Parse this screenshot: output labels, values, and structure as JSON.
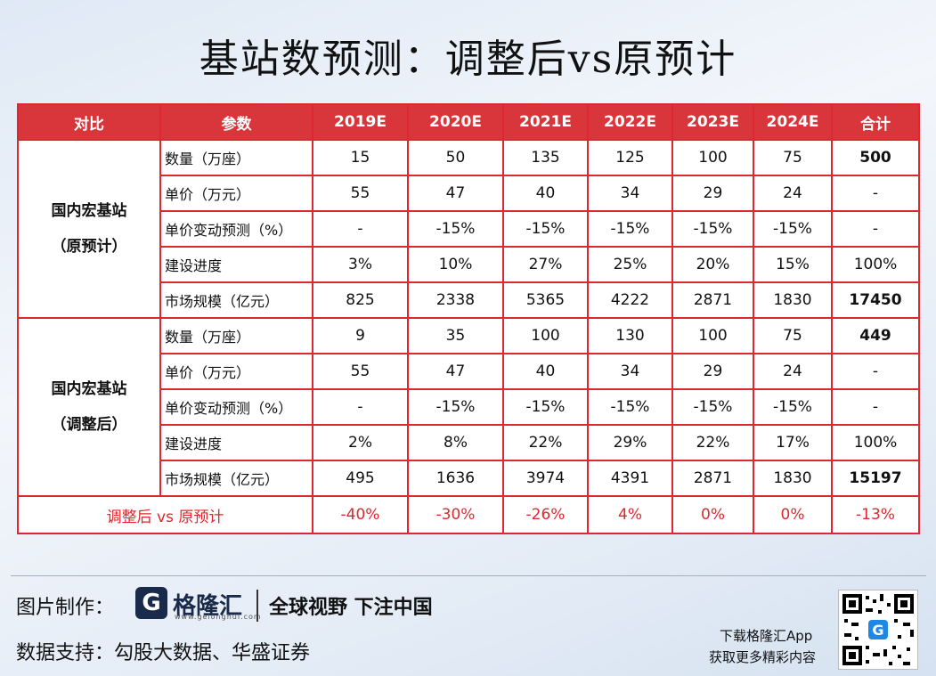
{
  "title": "基站数预测：调整后vs原预计",
  "watermark": {
    "main": "格隆汇",
    "url": "www.gelonghui.com"
  },
  "table": {
    "headers": [
      "对比",
      "参数",
      "2019E",
      "2020E",
      "2021E",
      "2022E",
      "2023E",
      "2024E",
      "合计"
    ],
    "groups": [
      {
        "label_line1": "国内宏基站",
        "label_line2": "（原预计）",
        "rows": [
          {
            "param": "数量（万座）",
            "values": [
              "15",
              "50",
              "135",
              "125",
              "100",
              "75"
            ],
            "total": "500",
            "total_bold": true
          },
          {
            "param": "单价（万元）",
            "values": [
              "55",
              "47",
              "40",
              "34",
              "29",
              "24"
            ],
            "total": "-",
            "total_bold": false
          },
          {
            "param": "单价变动预测（%）",
            "values": [
              "-",
              "-15%",
              "-15%",
              "-15%",
              "-15%",
              "-15%"
            ],
            "total": "-",
            "total_bold": false
          },
          {
            "param": "建设进度",
            "values": [
              "3%",
              "10%",
              "27%",
              "25%",
              "20%",
              "15%"
            ],
            "total": "100%",
            "total_bold": false
          },
          {
            "param": "市场规模（亿元）",
            "values": [
              "825",
              "2338",
              "5365",
              "4222",
              "2871",
              "1830"
            ],
            "total": "17450",
            "total_bold": true
          }
        ]
      },
      {
        "label_line1": "国内宏基站",
        "label_line2": "（调整后）",
        "rows": [
          {
            "param": "数量（万座）",
            "values": [
              "9",
              "35",
              "100",
              "130",
              "100",
              "75"
            ],
            "total": "449",
            "total_bold": true
          },
          {
            "param": "单价（万元）",
            "values": [
              "55",
              "47",
              "40",
              "34",
              "29",
              "24"
            ],
            "total": "-",
            "total_bold": false
          },
          {
            "param": "单价变动预测（%）",
            "values": [
              "-",
              "-15%",
              "-15%",
              "-15%",
              "-15%",
              "-15%"
            ],
            "total": "-",
            "total_bold": false
          },
          {
            "param": "建设进度",
            "values": [
              "2%",
              "8%",
              "22%",
              "29%",
              "22%",
              "17%"
            ],
            "total": "100%",
            "total_bold": false
          },
          {
            "param": "市场规模（亿元）",
            "values": [
              "495",
              "1636",
              "3974",
              "4391",
              "2871",
              "1830"
            ],
            "total": "15197",
            "total_bold": true
          }
        ]
      }
    ],
    "comparison": {
      "label": "调整后 vs 原预计",
      "values": [
        "-40%",
        "-30%",
        "-26%",
        "4%",
        "0%",
        "0%"
      ],
      "total": "-13%"
    }
  },
  "footer": {
    "made_by_label": "图片制作：",
    "logo_letter": "G",
    "logo_name": "格隆汇",
    "logo_url": "www.gelonghui.com",
    "slogan": "全球视野 下注中国",
    "data_support_label": "数据支持：",
    "data_sources": "勾股大数据、华盛证券",
    "download_line1": "下载格隆汇App",
    "download_line2": "获取更多精彩内容"
  },
  "colors": {
    "accent_red": "#e0262e",
    "header_red": "#d9363b",
    "brand_navy": "#1a2a4a"
  }
}
